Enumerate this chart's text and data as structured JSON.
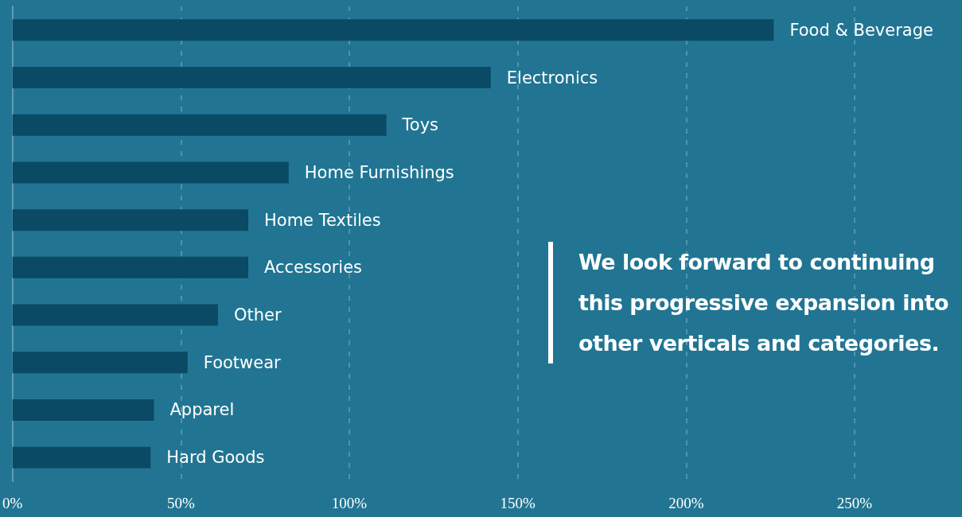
{
  "chart_data": {
    "type": "bar",
    "orientation": "horizontal",
    "categories": [
      "Food & Beverage",
      "Electronics",
      "Toys",
      "Home Furnishings",
      "Home Textiles",
      "Accessories",
      "Other",
      "Footwear",
      "Apparel",
      "Hard Goods"
    ],
    "values": [
      226,
      142,
      111,
      82,
      70,
      70,
      61,
      52,
      42,
      41
    ],
    "color": "#0a4a65",
    "xlim": [
      0,
      250
    ],
    "xticks": [
      {
        "value": 0,
        "label": "0%"
      },
      {
        "value": 50,
        "label": "50%"
      },
      {
        "value": 100,
        "label": "100%"
      },
      {
        "value": 150,
        "label": "150%"
      },
      {
        "value": 200,
        "label": "200%"
      },
      {
        "value": 250,
        "label": "250%"
      }
    ],
    "grid": "x",
    "tick_labels": "x",
    "annotations": [
      "We look forward to continuing this progressive expansion into other verticals and categories."
    ]
  }
}
